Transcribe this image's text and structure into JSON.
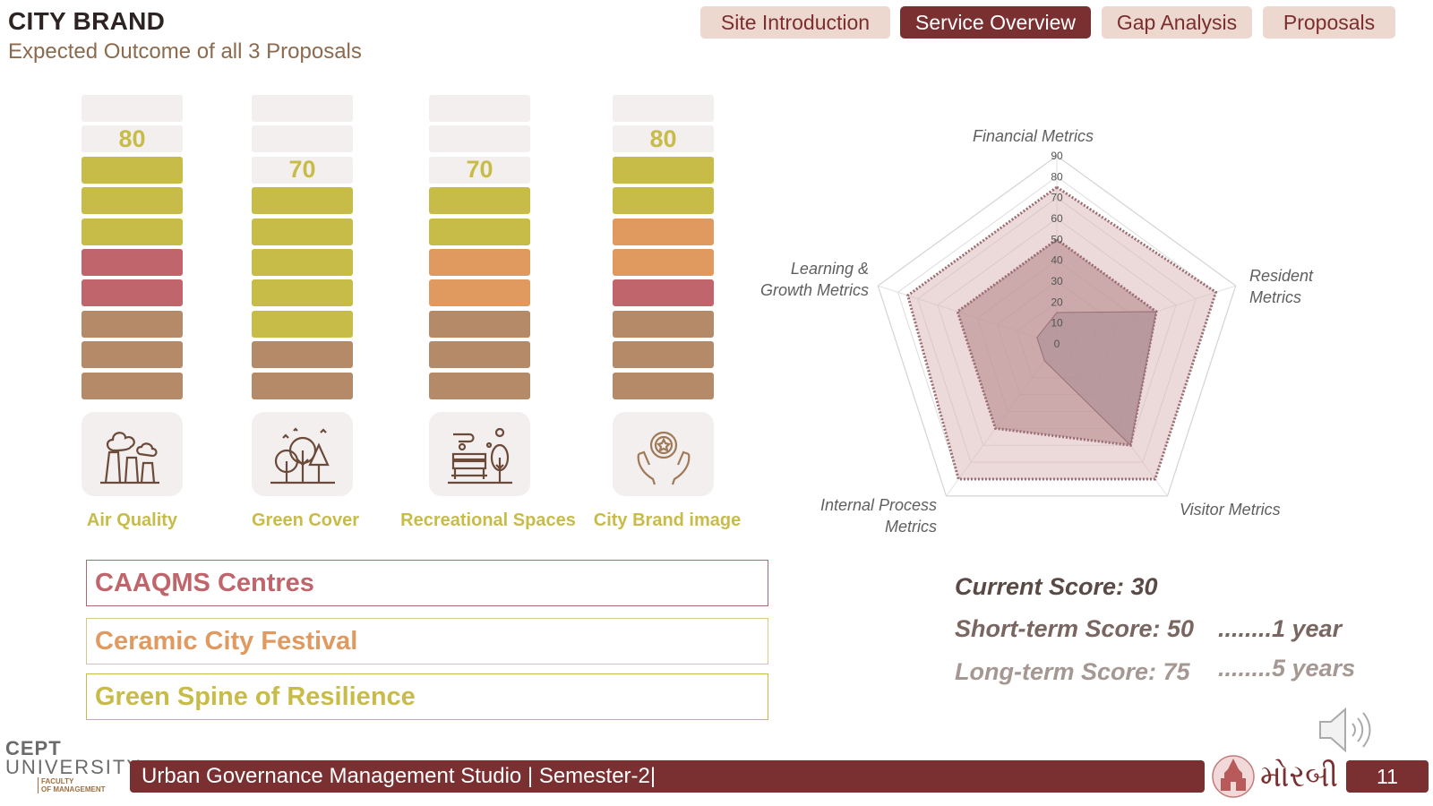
{
  "header": {
    "title": "CITY BRAND",
    "subtitle": "Expected Outcome of all 3 Proposals"
  },
  "nav": [
    {
      "label": "Site Introduction",
      "active": false
    },
    {
      "label": "Service Overview",
      "active": true
    },
    {
      "label": "Gap Analysis",
      "active": false
    },
    {
      "label": "Proposals",
      "active": false
    }
  ],
  "colors": {
    "maroon": "#7a2f31",
    "yellow": "#c8bc48",
    "orange": "#e09a60",
    "pink": "#c0656b",
    "brown": "#b48a68",
    "empty": "#f3efee"
  },
  "bars": [
    {
      "label": "Air Quality",
      "score": "80",
      "icon": "factory-smoke-icon",
      "segments": [
        "yellow",
        "yellow",
        "yellow",
        "pink",
        "pink",
        "brown",
        "brown",
        "brown"
      ]
    },
    {
      "label": "Green Cover",
      "score": "70",
      "icon": "trees-icon",
      "segments": [
        "yellow",
        "yellow",
        "yellow",
        "yellow",
        "yellow",
        "brown",
        "brown"
      ]
    },
    {
      "label": "Recreational Spaces",
      "score": "70",
      "icon": "park-bench-icon",
      "segments": [
        "yellow",
        "yellow",
        "orange",
        "orange",
        "brown",
        "brown",
        "brown"
      ]
    },
    {
      "label": "City Brand image",
      "score": "80",
      "icon": "award-hands-icon",
      "segments": [
        "yellow",
        "yellow",
        "orange",
        "orange",
        "pink",
        "brown",
        "brown",
        "brown"
      ]
    }
  ],
  "proposals": [
    {
      "label": "CAAQMS Centres",
      "color": "#c0656b",
      "border": "#a86a70"
    },
    {
      "label": "Ceramic City Festival",
      "color": "#e09a60",
      "border": "#d7c88a"
    },
    {
      "label": "Green Spine of Resilience",
      "color": "#c8bc48",
      "border": "#c8bc48"
    }
  ],
  "chart_data": {
    "type": "radar",
    "axes": [
      "Financial Metrics",
      "Resident Metrics",
      "Visitor Metrics",
      "Internal Process Metrics",
      "Learning & Growth Metrics"
    ],
    "axis_labels_display": {
      "financial": "Financial Metrics",
      "resident_1": "Resident",
      "resident_2": "Metrics",
      "visitor": "Visitor Metrics",
      "internal_1": "Internal Process",
      "internal_2": "Metrics",
      "learning_1": "Learning &",
      "learning_2": "Growth Metrics"
    },
    "ticks": [
      "0",
      "10",
      "20",
      "30",
      "40",
      "50",
      "60",
      "70",
      "80",
      "90"
    ],
    "rmax": 90,
    "series": [
      {
        "values": [
          75,
          80,
          80,
          80,
          75
        ],
        "color": "#d9b4b6"
      },
      {
        "values": [
          50,
          50,
          60,
          50,
          50
        ],
        "color": "#b88a8e"
      },
      {
        "values": [
          15,
          50,
          60,
          10,
          10
        ],
        "color": "#ad9196"
      }
    ]
  },
  "scores": {
    "current": "Current Score: 30",
    "short": "Short-term Score: 50",
    "short_time": "........1 year",
    "long": "Long-term Score: 75",
    "long_time": "........5 years"
  },
  "footer": {
    "studio": "Urban Governance Management Studio | Semester-2|",
    "page": "11",
    "uni_line1": "CEPT",
    "uni_line2": "UNIVERSITY",
    "uni_line3a": "FACULTY",
    "uni_line3b": "OF MANAGEMENT",
    "city": "મોરબી"
  }
}
